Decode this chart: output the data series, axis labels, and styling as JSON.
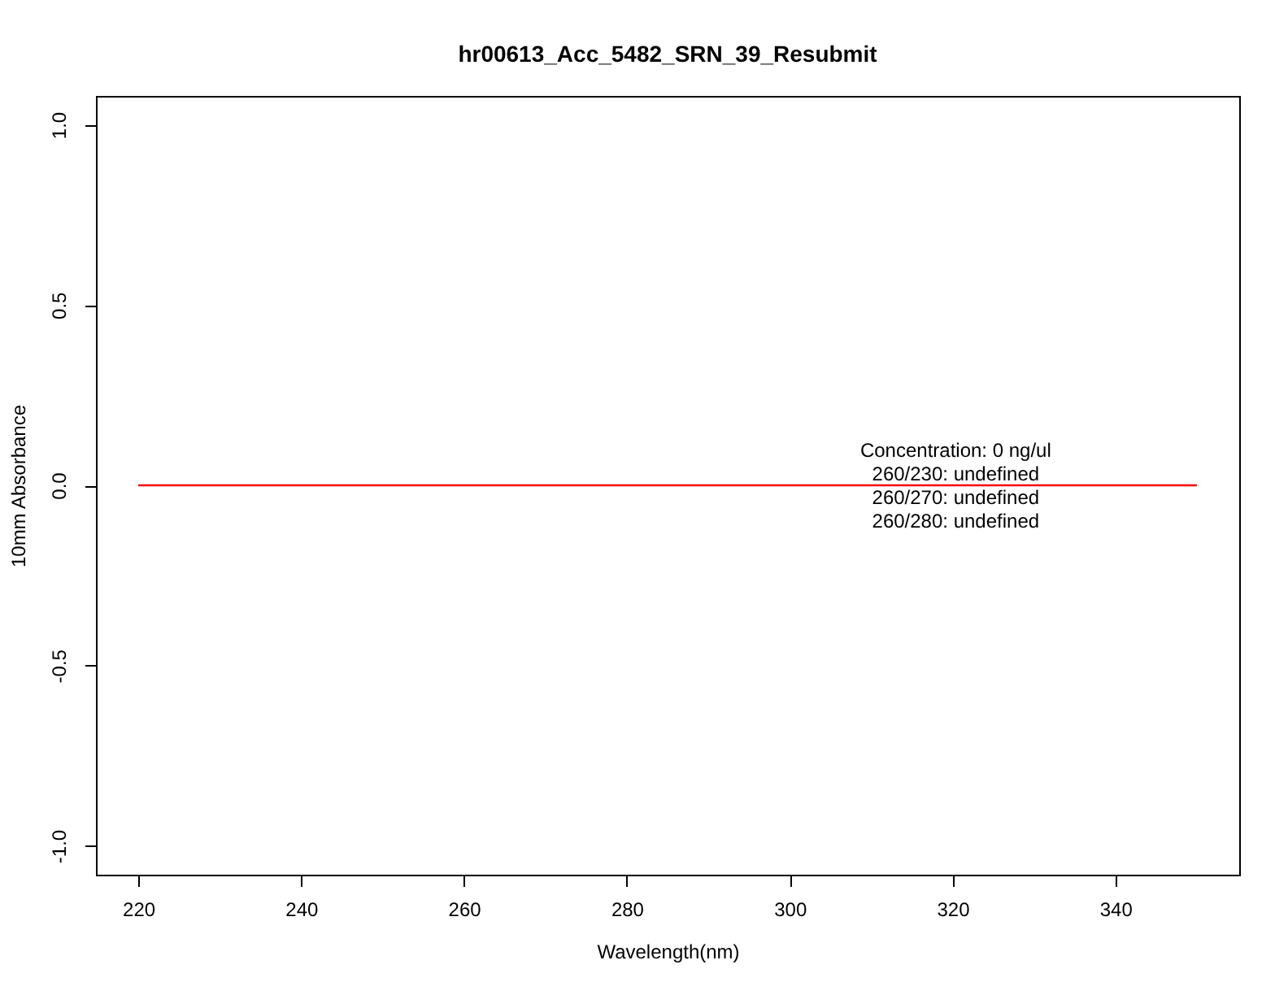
{
  "chart_data": {
    "type": "line",
    "title": "hr00613_Acc_5482_SRN_39_Resubmit",
    "xlabel": "Wavelength(nm)",
    "ylabel": "10mm Absorbance",
    "x": [
      220,
      350
    ],
    "series": [
      {
        "color": "#ff0000",
        "values": [
          0,
          0
        ]
      }
    ],
    "xlim": [
      214.8,
      355.2
    ],
    "xticks": [
      220,
      240,
      260,
      280,
      300,
      320,
      340
    ],
    "ylim": [
      -1.08,
      1.08
    ],
    "yticks": [
      {
        "value": -1,
        "label": "-1.0"
      },
      {
        "value": -0.5,
        "label": "-0.5"
      },
      {
        "value": 0,
        "label": "0.0"
      },
      {
        "value": 0.5,
        "label": "0.5"
      },
      {
        "value": 1,
        "label": "1.0"
      }
    ],
    "annotations": [
      "Concentration: 0 ng/ul",
      "260/230: undefined",
      "260/270: undefined",
      "260/280: undefined"
    ],
    "grid": false
  }
}
